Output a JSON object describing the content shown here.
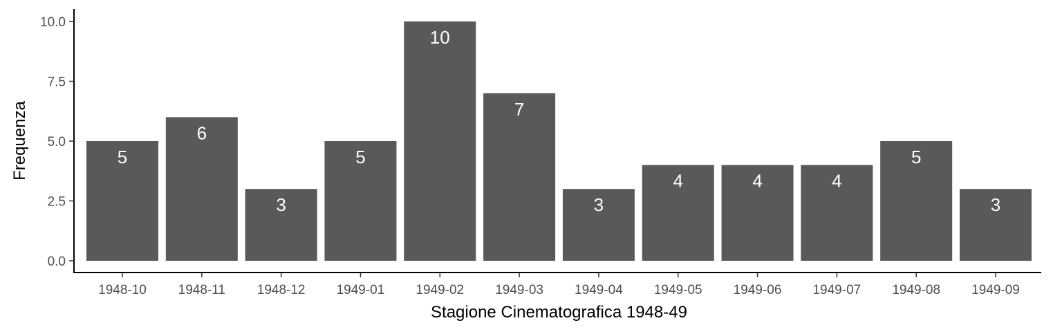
{
  "chart_data": {
    "type": "bar",
    "categories": [
      "1948-10",
      "1948-11",
      "1948-12",
      "1949-01",
      "1949-02",
      "1949-03",
      "1949-04",
      "1949-05",
      "1949-06",
      "1949-07",
      "1949-08",
      "1949-09"
    ],
    "values": [
      5,
      6,
      3,
      5,
      10,
      7,
      3,
      4,
      4,
      4,
      5,
      3
    ],
    "data_labels": [
      "5",
      "6",
      "3",
      "5",
      "10",
      "7",
      "3",
      "4",
      "4",
      "4",
      "5",
      "3"
    ],
    "xlabel": "Stagione Cinematografica 1948-49",
    "ylabel": "Frequenza",
    "ylim": [
      0,
      10.5
    ],
    "yticks": [
      0,
      2.5,
      5,
      7.5,
      10
    ],
    "ytick_labels": [
      "0.0",
      "2.5",
      "5.0",
      "7.5",
      "10.0"
    ],
    "grid": false,
    "bar_color": "#595959",
    "label_color": "#ffffff",
    "axis_color": "#000000",
    "tick_label_color": "#4d4d4d"
  }
}
